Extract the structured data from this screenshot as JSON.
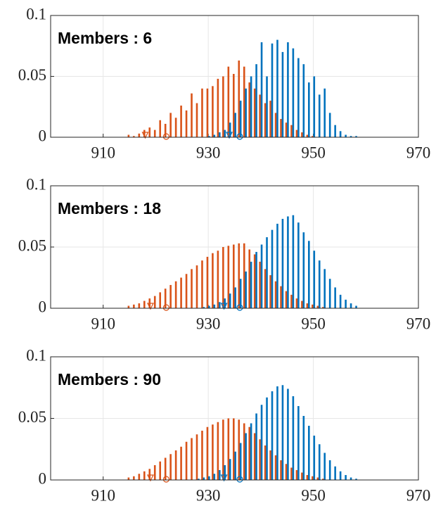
{
  "chart_data": [
    {
      "type": "bar",
      "annotation": "Members : 6",
      "x": [
        915,
        916,
        917,
        918,
        919,
        920,
        921,
        922,
        923,
        924,
        925,
        926,
        927,
        928,
        929,
        930,
        931,
        932,
        933,
        934,
        935,
        936,
        937,
        938,
        939,
        940,
        941,
        942,
        943,
        944,
        945,
        946,
        947,
        948,
        949,
        950,
        951,
        952,
        953,
        954,
        955,
        956,
        957,
        958
      ],
      "series": [
        {
          "color": "#d95319",
          "values": [
            0.002,
            0.001,
            0.003,
            0.006,
            0.008,
            0.006,
            0.014,
            0.011,
            0.02,
            0.016,
            0.026,
            0.022,
            0.036,
            0.028,
            0.04,
            0.04,
            0.042,
            0.048,
            0.05,
            0.058,
            0.052,
            0.063,
            0.058,
            0.045,
            0.04,
            0.035,
            0.028,
            0.03,
            0.02,
            0.015,
            0.012,
            0.01,
            0.006,
            0.004,
            0.002,
            0.001,
            0,
            0,
            0,
            0,
            0,
            0,
            0,
            0
          ],
          "markers": [
            {
              "shape": "triangle",
              "x": 918
            },
            {
              "shape": "circle",
              "x": 922
            }
          ]
        },
        {
          "color": "#0072bd",
          "values": [
            0,
            0,
            0,
            0,
            0,
            0,
            0,
            0,
            0,
            0,
            0,
            0,
            0,
            0,
            0,
            0.001,
            0.002,
            0.004,
            0.006,
            0.012,
            0.02,
            0.03,
            0.04,
            0.05,
            0.06,
            0.078,
            0.05,
            0.077,
            0.08,
            0.07,
            0.078,
            0.073,
            0.065,
            0.06,
            0.045,
            0.05,
            0.035,
            0.04,
            0.02,
            0.01,
            0.005,
            0.002,
            0.001,
            0.001
          ],
          "markers": [
            {
              "shape": "triangle",
              "x": 934
            },
            {
              "shape": "circle",
              "x": 936
            }
          ]
        }
      ],
      "xlim": [
        900,
        970
      ],
      "ylim": [
        0,
        0.1
      ],
      "xticks": [
        910,
        930,
        950,
        970
      ],
      "yticks": [
        0,
        0.05,
        0.1
      ],
      "grid": true
    },
    {
      "type": "bar",
      "annotation": "Members : 18",
      "x": [
        915,
        916,
        917,
        918,
        919,
        920,
        921,
        922,
        923,
        924,
        925,
        926,
        927,
        928,
        929,
        930,
        931,
        932,
        933,
        934,
        935,
        936,
        937,
        938,
        939,
        940,
        941,
        942,
        943,
        944,
        945,
        946,
        947,
        948,
        949,
        950,
        951,
        952,
        953,
        954,
        955,
        956,
        957,
        958
      ],
      "series": [
        {
          "color": "#d95319",
          "values": [
            0.002,
            0.003,
            0.004,
            0.006,
            0.008,
            0.01,
            0.013,
            0.016,
            0.019,
            0.022,
            0.025,
            0.028,
            0.032,
            0.035,
            0.039,
            0.042,
            0.045,
            0.047,
            0.05,
            0.051,
            0.052,
            0.053,
            0.053,
            0.048,
            0.044,
            0.038,
            0.032,
            0.027,
            0.022,
            0.018,
            0.014,
            0.011,
            0.008,
            0.006,
            0.004,
            0.003,
            0.002,
            0.001,
            0,
            0,
            0,
            0,
            0,
            0
          ],
          "markers": [
            {
              "shape": "triangle",
              "x": 919
            },
            {
              "shape": "circle",
              "x": 922
            }
          ]
        },
        {
          "color": "#0072bd",
          "values": [
            0,
            0,
            0,
            0,
            0,
            0,
            0,
            0,
            0,
            0,
            0,
            0,
            0,
            0,
            0.001,
            0.002,
            0.003,
            0.005,
            0.008,
            0.012,
            0.017,
            0.024,
            0.03,
            0.038,
            0.046,
            0.052,
            0.058,
            0.064,
            0.069,
            0.073,
            0.075,
            0.076,
            0.07,
            0.062,
            0.055,
            0.047,
            0.039,
            0.032,
            0.024,
            0.017,
            0.011,
            0.007,
            0.004,
            0.002
          ],
          "markers": [
            {
              "shape": "triangle",
              "x": 933
            },
            {
              "shape": "circle",
              "x": 936
            }
          ]
        }
      ],
      "xlim": [
        900,
        970
      ],
      "ylim": [
        0,
        0.1
      ],
      "xticks": [
        910,
        930,
        950,
        970
      ],
      "yticks": [
        0,
        0.05,
        0.1
      ],
      "grid": true
    },
    {
      "type": "bar",
      "annotation": "Members : 90",
      "x": [
        915,
        916,
        917,
        918,
        919,
        920,
        921,
        922,
        923,
        924,
        925,
        926,
        927,
        928,
        929,
        930,
        931,
        932,
        933,
        934,
        935,
        936,
        937,
        938,
        939,
        940,
        941,
        942,
        943,
        944,
        945,
        946,
        947,
        948,
        949,
        950,
        951,
        952,
        953,
        954,
        955,
        956,
        957,
        958
      ],
      "series": [
        {
          "color": "#d95319",
          "values": [
            0.002,
            0.003,
            0.005,
            0.007,
            0.009,
            0.012,
            0.015,
            0.018,
            0.021,
            0.024,
            0.027,
            0.031,
            0.034,
            0.037,
            0.04,
            0.043,
            0.045,
            0.047,
            0.049,
            0.05,
            0.05,
            0.049,
            0.046,
            0.043,
            0.038,
            0.033,
            0.028,
            0.024,
            0.02,
            0.016,
            0.013,
            0.01,
            0.008,
            0.006,
            0.004,
            0.003,
            0.002,
            0.001,
            0,
            0,
            0,
            0,
            0,
            0
          ],
          "markers": [
            {
              "shape": "triangle",
              "x": 919
            },
            {
              "shape": "circle",
              "x": 922
            }
          ]
        },
        {
          "color": "#0072bd",
          "values": [
            0,
            0,
            0,
            0,
            0,
            0,
            0,
            0,
            0,
            0,
            0,
            0,
            0,
            0.001,
            0.002,
            0.003,
            0.005,
            0.008,
            0.012,
            0.017,
            0.023,
            0.03,
            0.038,
            0.046,
            0.054,
            0.061,
            0.067,
            0.072,
            0.076,
            0.077,
            0.074,
            0.068,
            0.06,
            0.052,
            0.044,
            0.036,
            0.029,
            0.022,
            0.016,
            0.011,
            0.007,
            0.004,
            0.002,
            0.001
          ],
          "markers": [
            {
              "shape": "triangle",
              "x": 933
            },
            {
              "shape": "circle",
              "x": 936
            }
          ]
        }
      ],
      "xlim": [
        900,
        970
      ],
      "ylim": [
        0,
        0.1
      ],
      "xticks": [
        910,
        930,
        950,
        970
      ],
      "yticks": [
        0,
        0.05,
        0.1
      ],
      "grid": true
    }
  ]
}
